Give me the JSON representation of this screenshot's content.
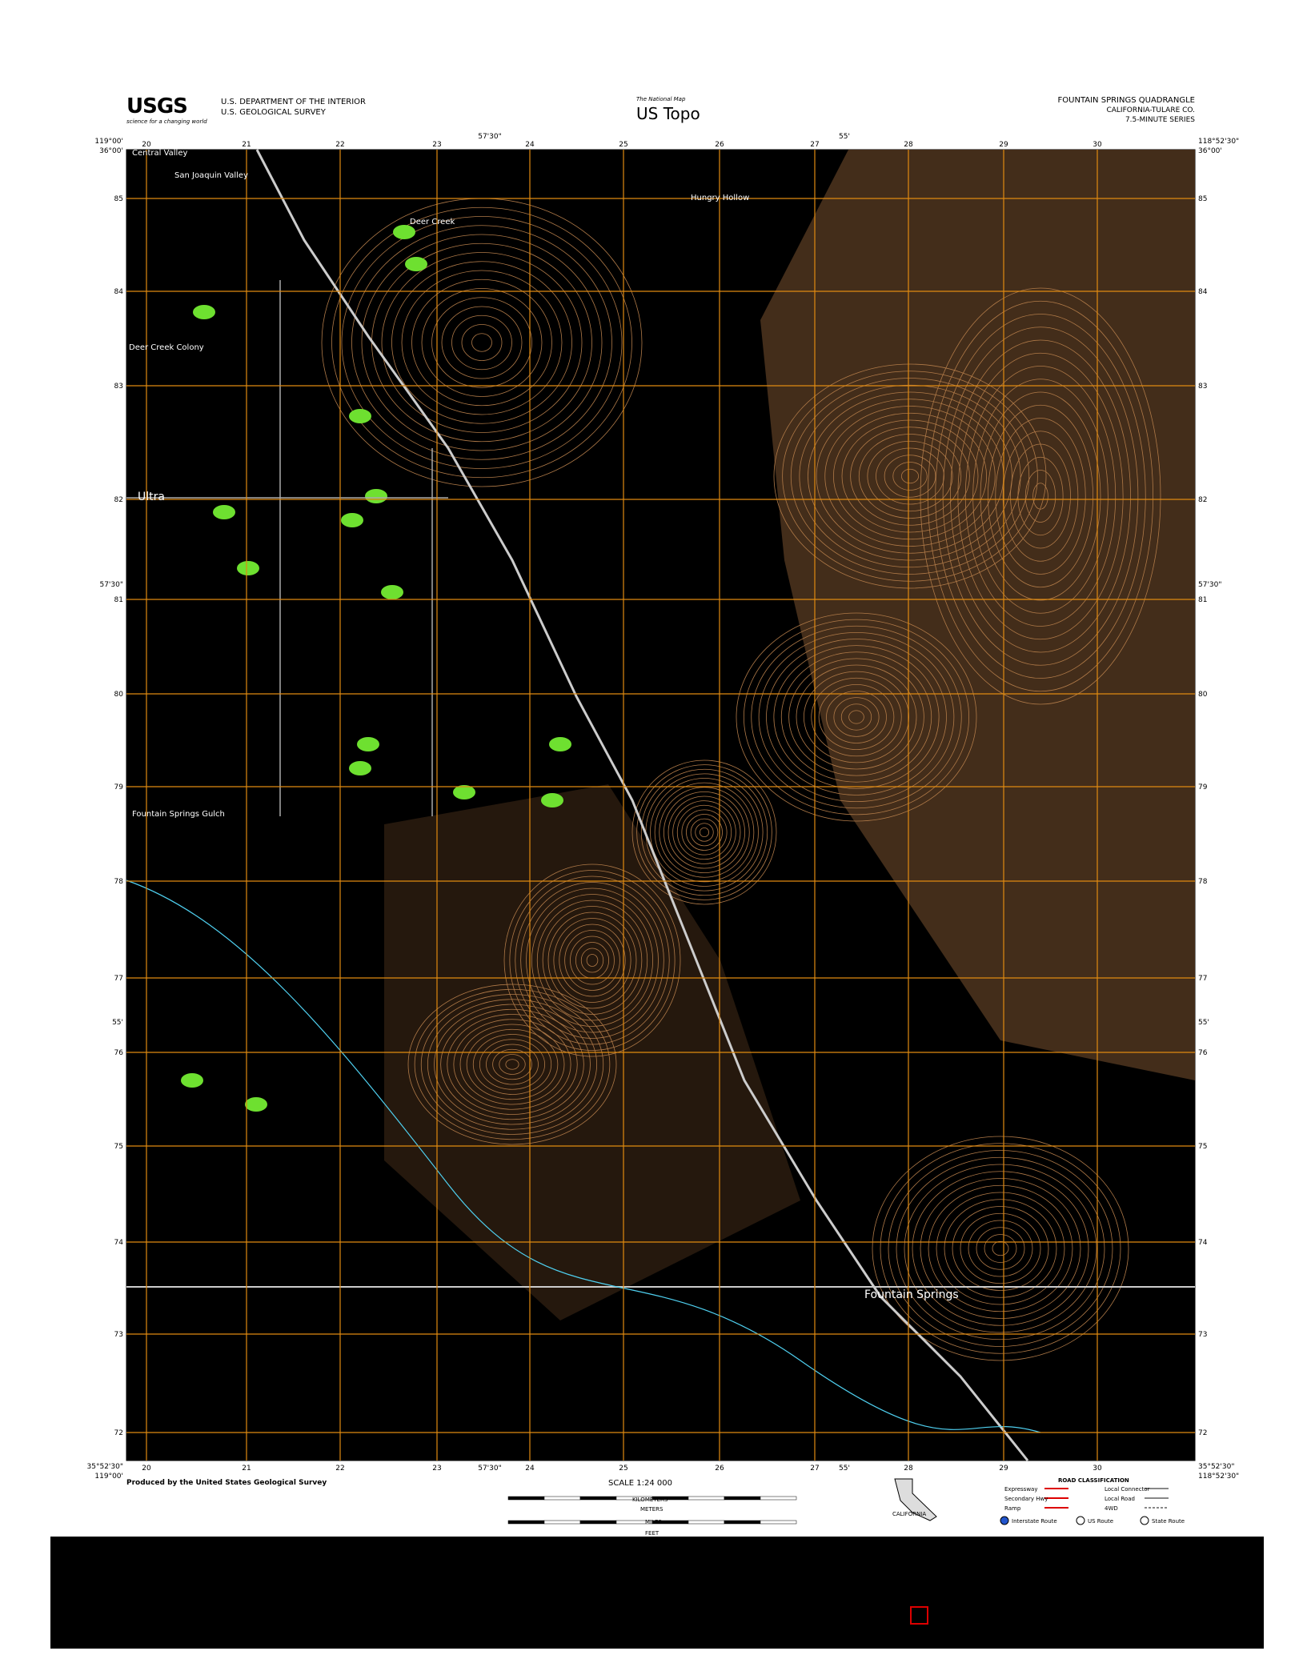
{
  "header": {
    "agency": [
      "U.S. DEPARTMENT OF THE INTERIOR",
      "U.S. GEOLOGICAL SURVEY"
    ],
    "usgs_logo": "USGS",
    "usgs_tagline": "science for a changing world",
    "national_map": "The National Map",
    "us_topo": "US Topo",
    "quad_title": "FOUNTAIN SPRINGS QUADRANGLE",
    "state_county": "CALIFORNIA-TULARE CO.",
    "series": "7.5-MINUTE SERIES"
  },
  "map": {
    "corners": {
      "nw_lat": "36°00'",
      "nw_lon": "119°00'",
      "ne_lat": "36°00'",
      "ne_lon": "118°52'30\"",
      "sw_lat": "35°52'30\"",
      "sw_lon": "119°00'",
      "se_lat": "35°52'30\"",
      "se_lon": "118°52'30\""
    },
    "easting_labels": [
      "20",
      "21",
      "22",
      "23",
      "24",
      "25",
      "26",
      "27",
      "28",
      "29",
      "30"
    ],
    "northing_labels": [
      "85",
      "84",
      "83",
      "82",
      "81",
      "80",
      "79",
      "78",
      "77",
      "76",
      "75",
      "74",
      "73",
      "72"
    ],
    "mid_lon_labels": [
      "57'30\"",
      "55'"
    ],
    "mid_lat_labels": [
      "57'30\"",
      "55'"
    ],
    "places": [
      "Central Valley",
      "San Joaquin Valley",
      "Deer Creek",
      "Deer Creek Colony",
      "Ultra",
      "Fountain Springs Gulch",
      "Hungry Hollow",
      "Fountain Springs"
    ]
  },
  "footer": {
    "producer": "Produced by the United States Geological Survey",
    "scale": "SCALE 1:24 000",
    "units": [
      "KILOMETERS",
      "METERS",
      "MILES",
      "FEET"
    ],
    "inset": "CALIFORNIA",
    "legend_title": "ROAD CLASSIFICATION",
    "legend_items": [
      "Expressway",
      "Secondary Hwy",
      "Ramp",
      "Local Connector",
      "Local Road",
      "4WD",
      "Interstate Route",
      "US Route",
      "State Route"
    ]
  }
}
